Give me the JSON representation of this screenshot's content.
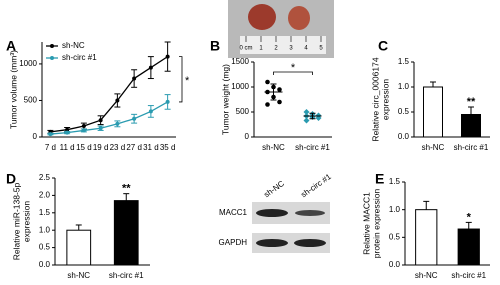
{
  "photo": {
    "ruler_labels": [
      "0 cm",
      "1",
      "2",
      "3",
      "4",
      "5"
    ]
  },
  "blot": {
    "lanes": [
      "sh-NC",
      "sh-circ #1"
    ],
    "bands": [
      "MACC1",
      "GAPDH"
    ]
  },
  "chart_data": [
    {
      "panel": "A",
      "type": "line",
      "ylabel": [
        "Tumor volume (mm³)"
      ],
      "categories": [
        "7 d",
        "11 d",
        "15 d",
        "19 d",
        "23 d",
        "27 d",
        "31 d",
        "35 d"
      ],
      "series": [
        {
          "name": "sh-NC",
          "color": "#000000",
          "values": [
            70,
            100,
            150,
            230,
            500,
            800,
            950,
            1100
          ],
          "errors": [
            20,
            30,
            40,
            60,
            90,
            120,
            150,
            200
          ]
        },
        {
          "name": "sh-circ #1",
          "color": "#2a9bb0",
          "values": [
            40,
            60,
            90,
            120,
            180,
            250,
            350,
            480
          ],
          "errors": [
            10,
            15,
            20,
            30,
            40,
            60,
            80,
            100
          ]
        }
      ],
      "ylim": [
        0,
        1300
      ],
      "yticks": [
        0,
        500,
        1000
      ],
      "legend": "top-left",
      "significance": "*"
    },
    {
      "panel": "B",
      "type": "dot",
      "ylabel": [
        "Tumor weight (mg)"
      ],
      "categories": [
        "sh-NC",
        "sh-circ #1"
      ],
      "groups": [
        {
          "color": "#000000",
          "marker": "circle",
          "values": [
            1100,
            1000,
            950,
            900,
            800,
            700,
            650
          ],
          "mean": 900,
          "sd": 160
        },
        {
          "color": "#2a9bb0",
          "marker": "diamond",
          "values": [
            500,
            460,
            430,
            420,
            400,
            380,
            330
          ],
          "mean": 420,
          "sd": 55
        }
      ],
      "ylim": [
        0,
        1500
      ],
      "yticks": [
        0,
        500,
        1000,
        1500
      ],
      "significance": "*"
    },
    {
      "panel": "C",
      "type": "bar",
      "ylabel": [
        "Relative circ_0006174",
        "expression"
      ],
      "categories": [
        "sh-NC",
        "sh-circ #1"
      ],
      "values": [
        1.0,
        0.45
      ],
      "errors": [
        0.1,
        0.15
      ],
      "colors": [
        "#ffffff",
        "#000000"
      ],
      "ylim": [
        0,
        1.5
      ],
      "yticks": [
        {
          "value": 0,
          "label": "0.0"
        },
        0.5,
        {
          "value": 1,
          "label": "1.0"
        },
        1.5
      ],
      "significance": "**"
    },
    {
      "panel": "D",
      "type": "bar",
      "ylabel": [
        "Relative miR-138-5p",
        "expression"
      ],
      "categories": [
        "sh-NC",
        "sh-circ #1"
      ],
      "values": [
        1.0,
        1.85
      ],
      "errors": [
        0.15,
        0.2
      ],
      "colors": [
        "#ffffff",
        "#000000"
      ],
      "ylim": [
        0,
        2.5
      ],
      "yticks": [
        {
          "value": 0,
          "label": "0.0"
        },
        0.5,
        {
          "value": 1,
          "label": "1.0"
        },
        1.5,
        {
          "value": 2,
          "label": "2.0"
        },
        2.5
      ],
      "significance": "**"
    },
    {
      "panel": "E",
      "type": "bar",
      "ylabel": [
        "Relative MACC1",
        "protein expression"
      ],
      "categories": [
        "sh-NC",
        "sh-circ #1"
      ],
      "values": [
        1.0,
        0.65
      ],
      "errors": [
        0.15,
        0.12
      ],
      "colors": [
        "#ffffff",
        "#000000"
      ],
      "ylim": [
        0,
        1.5
      ],
      "yticks": [
        {
          "value": 0,
          "label": "0.0"
        },
        0.5,
        {
          "value": 1,
          "label": "1.0"
        },
        1.5
      ],
      "significance": "*"
    }
  ]
}
